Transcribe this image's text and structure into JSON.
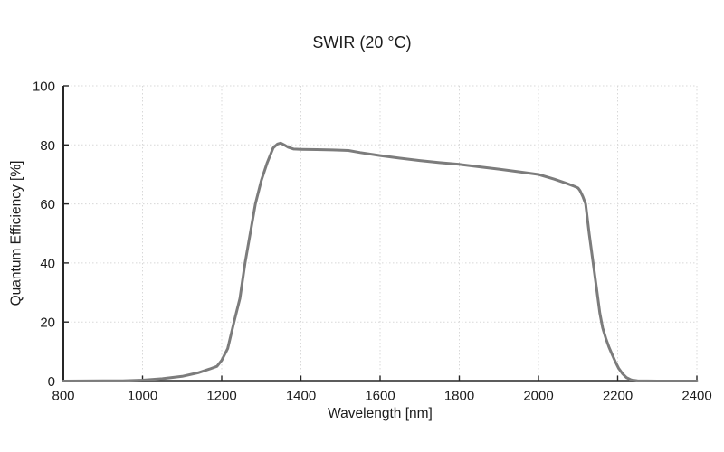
{
  "chart_data": {
    "type": "line",
    "title": "SWIR (20 °C)",
    "xlabel": "Wavelength [nm]",
    "ylabel": "Quantum Efficiency [%]",
    "xlim": [
      800,
      2400
    ],
    "ylim": [
      0,
      100
    ],
    "xticks": [
      800,
      1000,
      1200,
      1400,
      1600,
      1800,
      2000,
      2200,
      2400
    ],
    "yticks": [
      0,
      20,
      40,
      60,
      80,
      100
    ],
    "grid": "dotted",
    "legend": "none",
    "background": "#ffffff",
    "axis_color": "#262626",
    "grid_color": "#d8d8d8",
    "text_color": "#1c1c1c",
    "series": [
      {
        "name": "Quantum Efficiency",
        "color": "#7c7c7c",
        "line_width": 3,
        "points": [
          [
            800,
            0
          ],
          [
            900,
            0.05
          ],
          [
            950,
            0.1
          ],
          [
            1000,
            0.3
          ],
          [
            1050,
            0.8
          ],
          [
            1100,
            1.6
          ],
          [
            1140,
            2.8
          ],
          [
            1170,
            4.1
          ],
          [
            1188,
            5.0
          ],
          [
            1200,
            7.0
          ],
          [
            1215,
            11
          ],
          [
            1231,
            20
          ],
          [
            1246,
            28
          ],
          [
            1259,
            40
          ],
          [
            1272,
            50
          ],
          [
            1285,
            60
          ],
          [
            1300,
            68
          ],
          [
            1315,
            74
          ],
          [
            1330,
            79
          ],
          [
            1341,
            80.3
          ],
          [
            1349,
            80.6
          ],
          [
            1358,
            80
          ],
          [
            1368,
            79.2
          ],
          [
            1382,
            78.6
          ],
          [
            1400,
            78.5
          ],
          [
            1440,
            78.4
          ],
          [
            1480,
            78.3
          ],
          [
            1520,
            78.1
          ],
          [
            1550,
            77.4
          ],
          [
            1600,
            76.4
          ],
          [
            1650,
            75.5
          ],
          [
            1700,
            74.7
          ],
          [
            1750,
            74.0
          ],
          [
            1800,
            73.4
          ],
          [
            1850,
            72.6
          ],
          [
            1900,
            71.8
          ],
          [
            1950,
            70.9
          ],
          [
            2000,
            70.0
          ],
          [
            2040,
            68.4
          ],
          [
            2070,
            67.0
          ],
          [
            2090,
            66.0
          ],
          [
            2100,
            65.4
          ],
          [
            2105,
            64.5
          ],
          [
            2112,
            62.5
          ],
          [
            2119,
            60
          ],
          [
            2128,
            50
          ],
          [
            2138,
            40
          ],
          [
            2148,
            30
          ],
          [
            2155,
            23
          ],
          [
            2162,
            18
          ],
          [
            2170,
            14.5
          ],
          [
            2178,
            11.5
          ],
          [
            2186,
            9.0
          ],
          [
            2194,
            6.6
          ],
          [
            2202,
            4.4
          ],
          [
            2212,
            2.5
          ],
          [
            2222,
            1.2
          ],
          [
            2234,
            0.4
          ],
          [
            2250,
            0.1
          ],
          [
            2300,
            0
          ],
          [
            2400,
            0
          ]
        ]
      }
    ]
  }
}
